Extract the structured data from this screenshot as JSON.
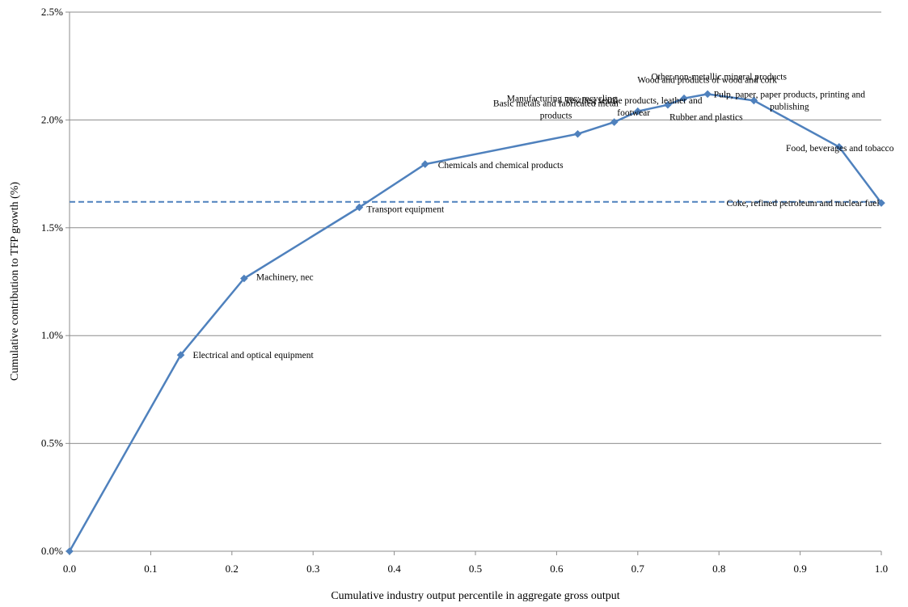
{
  "chart_data": {
    "type": "line",
    "title": "",
    "xlabel": "Cumulative industry output percentile in aggregate gross output",
    "ylabel": "Cumulative contribution to TFP growth (%)",
    "xlim": [
      0,
      1
    ],
    "ylim": [
      0,
      2.5
    ],
    "x_ticks": [
      0.0,
      0.1,
      0.2,
      0.3,
      0.4,
      0.5,
      0.6,
      0.7,
      0.8,
      0.9,
      1.0
    ],
    "x_tick_labels": [
      "0.0",
      "0.1",
      "0.2",
      "0.3",
      "0.4",
      "0.5",
      "0.6",
      "0.7",
      "0.8",
      "0.9",
      "1.0"
    ],
    "y_ticks": [
      0,
      0.5,
      1.0,
      1.5,
      2.0,
      2.5
    ],
    "y_tick_labels": [
      "0.0%",
      "0.5%",
      "1.0%",
      "1.5%",
      "2.0%",
      "2.5%"
    ],
    "grid": {
      "horizontal": true,
      "vertical": false
    },
    "reference_line": {
      "y": 1.62,
      "style": "dashed"
    },
    "points": [
      {
        "x": 0.0,
        "y": 0.0,
        "label": ""
      },
      {
        "x": 0.137,
        "y": 0.91,
        "label": "Electrical and optical equipment"
      },
      {
        "x": 0.215,
        "y": 1.265,
        "label": "Machinery, nec"
      },
      {
        "x": 0.357,
        "y": 1.595,
        "label": "Transport equipment"
      },
      {
        "x": 0.438,
        "y": 1.795,
        "label": "Chemicals and chemical products"
      },
      {
        "x": 0.626,
        "y": 1.935,
        "label": "Basic metals and fabricated metal products"
      },
      {
        "x": 0.671,
        "y": 1.99,
        "label": "Textiles, textile products, leather and footwear"
      },
      {
        "x": 0.7,
        "y": 2.04,
        "label": "Manufacturing nec; recycling"
      },
      {
        "x": 0.737,
        "y": 2.07,
        "label": "Rubber and plastics"
      },
      {
        "x": 0.757,
        "y": 2.1,
        "label": "Wood and products of wood and cork"
      },
      {
        "x": 0.786,
        "y": 2.12,
        "label": "Other non-metallic mineral products"
      },
      {
        "x": 0.843,
        "y": 2.09,
        "label": "Pulp, paper, paper products, printing and publishing"
      },
      {
        "x": 0.948,
        "y": 1.875,
        "label": "Food, beverages and tobacco"
      },
      {
        "x": 1.0,
        "y": 1.615,
        "label": "Coke, refined petroleum and nuclear fuel"
      }
    ]
  }
}
